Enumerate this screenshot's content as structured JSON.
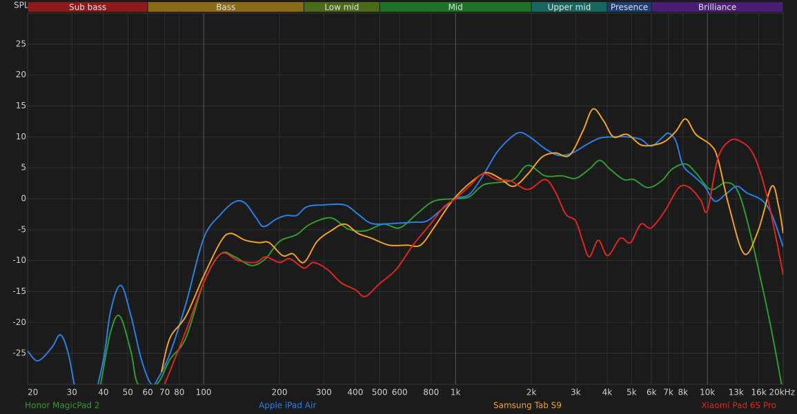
{
  "chart_data": {
    "type": "line",
    "y_label": "SPL",
    "xscale": "log",
    "xlim": [
      20,
      20000
    ],
    "ylim": [
      -30,
      30
    ],
    "grid": true,
    "xticks": [
      20,
      30,
      40,
      50,
      60,
      70,
      80,
      100,
      200,
      300,
      400,
      500,
      600,
      800,
      {
        "value": 1000,
        "label": "1k"
      },
      {
        "value": 2000,
        "label": "2k"
      },
      {
        "value": 3000,
        "label": "3k"
      },
      {
        "value": 4000,
        "label": "4k"
      },
      {
        "value": 5000,
        "label": "5k"
      },
      {
        "value": 6000,
        "label": "6k"
      },
      {
        "value": 7000,
        "label": "7k"
      },
      {
        "value": 8000,
        "label": "8k"
      },
      {
        "value": 10000,
        "label": "10k"
      },
      {
        "value": 13000,
        "label": "13k"
      },
      {
        "value": 16000,
        "label": "16k"
      },
      {
        "value": 20000,
        "label": "20kHz"
      }
    ],
    "yticks": [
      -25,
      -20,
      -15,
      -10,
      -5,
      0,
      5,
      10,
      15,
      20,
      25
    ],
    "bands": [
      {
        "label": "Sub bass",
        "from": 20,
        "to": 60,
        "color": "#8e1b1b"
      },
      {
        "label": "Bass",
        "from": 60,
        "to": 250,
        "color": "#8a6a17"
      },
      {
        "label": "Low mid",
        "from": 250,
        "to": 500,
        "color": "#4b6b16"
      },
      {
        "label": "Mid",
        "from": 500,
        "to": 2000,
        "color": "#1d7327"
      },
      {
        "label": "Upper mid",
        "from": 2000,
        "to": 4000,
        "color": "#186660"
      },
      {
        "label": "Presence",
        "from": 4000,
        "to": 6000,
        "color": "#1d3d74"
      },
      {
        "label": "Brilliance",
        "from": 6000,
        "to": 20000,
        "color": "#4a1d76"
      }
    ],
    "series": [
      {
        "name": "Honor MagicPad 2",
        "color": "#2e9d2e",
        "x": [
          39,
          42.8,
          46.5,
          51.5,
          55,
          65,
          73.5,
          85,
          100,
          117,
          133,
          155,
          176,
          200,
          234,
          265,
          320,
          375,
          438,
          517,
          600,
          700,
          820,
          1000,
          1134,
          1284,
          1455,
          1700,
          1938,
          2266,
          2650,
          3000,
          3400,
          3739,
          4100,
          4650,
          5100,
          5800,
          6587,
          7250,
          8200,
          9000,
          10300,
          11800,
          13100,
          14400,
          16400,
          18000,
          19700
        ],
        "values": [
          -30,
          -21.4,
          -19,
          -24.8,
          -30,
          -30,
          -26,
          -22.5,
          -13.6,
          -8.9,
          -9.4,
          -10.8,
          -9.7,
          -6.9,
          -5.8,
          -4.1,
          -3.1,
          -4.9,
          -5.2,
          -4.1,
          -4.7,
          -2.5,
          -0.4,
          0,
          0.3,
          2.2,
          2.6,
          3.1,
          5.4,
          3.7,
          3.7,
          3.3,
          4.8,
          6.2,
          4.8,
          3.1,
          3.1,
          1.8,
          2.9,
          4.8,
          5.6,
          4.2,
          1.5,
          2.6,
          1.5,
          -3.6,
          -13.6,
          -21.4,
          -30
        ]
      },
      {
        "name": "Apple iPad Air",
        "color": "#2a7fe6",
        "x": [
          20,
          22,
          25,
          27,
          29,
          32,
          36,
          40,
          42.8,
          46.9,
          51.5,
          56.6,
          62,
          66,
          73.5,
          85,
          100,
          117,
          133,
          146,
          161,
          173,
          194,
          213,
          234,
          257,
          300,
          363,
          410,
          465,
          561,
          678,
          770,
          871,
          1000,
          1134,
          1284,
          1455,
          1649,
          1811,
          2000,
          2266,
          2568,
          2911,
          3299,
          3739,
          4237,
          4802,
          5442,
          5985,
          6587,
          7000,
          7500,
          8000,
          8800,
          9750,
          10700,
          11800,
          13100,
          14400,
          16400,
          18000,
          20000
        ],
        "values": [
          -24.6,
          -26.2,
          -24,
          -22,
          -25,
          -33,
          -33,
          -26,
          -18,
          -14,
          -19,
          -26,
          -30,
          -29,
          -25,
          -17,
          -6.4,
          -2.5,
          -0.5,
          -0.7,
          -3,
          -4.5,
          -3.3,
          -2.7,
          -2.7,
          -1.3,
          -1,
          -1,
          -2.5,
          -4,
          -4,
          -3.8,
          -3.6,
          -1.9,
          0,
          0.7,
          3.7,
          7.4,
          9.8,
          10.7,
          9.8,
          8.1,
          7,
          7.4,
          8.7,
          9.8,
          10,
          10,
          9.6,
          8.5,
          9.8,
          10.6,
          9.3,
          5.4,
          3.7,
          2,
          -0.4,
          0.7,
          2,
          0.9,
          -0.2,
          -2.5,
          -7.8
        ]
      },
      {
        "name": "Samsung Tab S9",
        "color": "#f2a227",
        "x": [
          68,
          73.5,
          85,
          100,
          117,
          128,
          146,
          166,
          182,
          206,
          226,
          250,
          282,
          320,
          363,
          410,
          465,
          544,
          640,
          726,
          820,
          940,
          1033,
          1170,
          1325,
          1500,
          1700,
          1938,
          2200,
          2490,
          2830,
          3200,
          3510,
          3870,
          4237,
          4802,
          5442,
          6160,
          6800,
          7500,
          8200,
          9000,
          10300,
          11000,
          12200,
          14000,
          15900,
          18000,
          19200,
          20000
        ],
        "values": [
          -28,
          -22.5,
          -19,
          -12.5,
          -6.9,
          -5.6,
          -6.7,
          -7.1,
          -7.1,
          -9.2,
          -8.9,
          -10.3,
          -6.9,
          -5.2,
          -4.1,
          -5.6,
          -6.4,
          -7.5,
          -7.5,
          -7.5,
          -4.7,
          -1.1,
          0.9,
          2.9,
          4.2,
          3.3,
          2,
          4,
          6.7,
          7.4,
          7,
          10.9,
          14.5,
          12.6,
          10,
          10.4,
          8.7,
          8.7,
          9.3,
          10.9,
          12.9,
          10.4,
          8.7,
          6.5,
          -1.3,
          -8.9,
          -5.2,
          2,
          -1.3,
          -5.6
        ]
      },
      {
        "name": "Xiaomi Pad 6S Pro",
        "color": "#e0261f",
        "x": [
          70,
          85,
          100,
          117,
          137,
          161,
          176,
          200,
          220,
          250,
          273,
          309,
          352,
          400,
          438,
          497,
          582,
          678,
          795,
          900,
          1000,
          1134,
          1284,
          1455,
          1649,
          1938,
          2266,
          2490,
          2740,
          3000,
          3200,
          3400,
          3690,
          4020,
          4510,
          4950,
          5442,
          5985,
          6800,
          7700,
          8500,
          9400,
          10000,
          11000,
          12200,
          13500,
          15300,
          17400,
          20000
        ],
        "values": [
          -30,
          -21.4,
          -13.6,
          -8.9,
          -10,
          -10.3,
          -9.4,
          -10.3,
          -9.7,
          -11.2,
          -10.3,
          -11.4,
          -13.6,
          -14.7,
          -15.8,
          -13.8,
          -11.4,
          -7.5,
          -4.1,
          -1.3,
          0,
          2,
          4,
          3.1,
          2.9,
          1.5,
          3.1,
          1.1,
          -2.5,
          -3.6,
          -6.9,
          -9.4,
          -6.7,
          -9.2,
          -6.4,
          -7.1,
          -4.1,
          -4.7,
          -1.9,
          1.8,
          1.8,
          -0.2,
          -1.9,
          6.5,
          9.3,
          9.3,
          7,
          -0.2,
          -12.3
        ]
      }
    ]
  }
}
